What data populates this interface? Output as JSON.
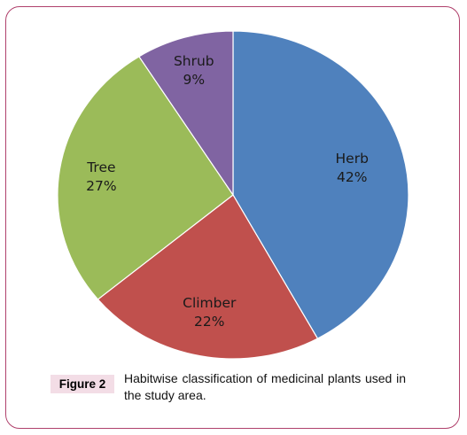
{
  "chart_data": {
    "type": "pie",
    "title": "",
    "slices": [
      {
        "label": "Herb",
        "value": 42,
        "value_label": "42%",
        "color": "#4f81bd"
      },
      {
        "label": "Climber",
        "value": 22,
        "value_label": "22%",
        "color": "#c0504d"
      },
      {
        "label": "Tree",
        "value": 27,
        "value_label": "27%",
        "color": "#9bbb59"
      },
      {
        "label": "Shrub",
        "value": 9,
        "value_label": "9%",
        "color": "#8064a2"
      }
    ],
    "start_angle_deg": 0,
    "direction": "clockwise",
    "edge_color": "#ffffff"
  },
  "caption": {
    "tag": "Figure 2",
    "text": "Habitwise classification of medicinal plants used in the study area."
  },
  "colors": {
    "frame_border": "#b0416c",
    "tag_background": "#f3dde6"
  }
}
